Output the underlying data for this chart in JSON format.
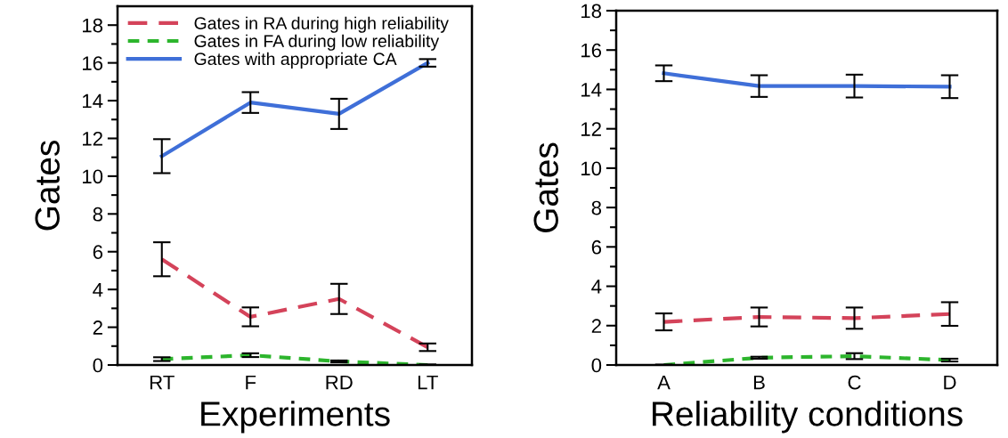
{
  "chart_data": [
    {
      "type": "line",
      "xlabel": "Experiments",
      "ylabel": "Gates",
      "categories": [
        "RT",
        "F",
        "RD",
        "LT"
      ],
      "ylim": [
        0,
        19
      ],
      "yticks": [
        0,
        {
          "value": 1,
          "label": null
        },
        2,
        {
          "value": 3,
          "label": null
        },
        4,
        {
          "value": 5,
          "label": null
        },
        6,
        {
          "value": 7,
          "label": null
        },
        8,
        {
          "value": 9,
          "label": null
        },
        10,
        {
          "value": 11,
          "label": null
        },
        12,
        {
          "value": 13,
          "label": null
        },
        14,
        {
          "value": 15,
          "label": null
        },
        16,
        {
          "value": 17,
          "label": null
        },
        18
      ],
      "grid": false,
      "legend": "top left",
      "series": [
        {
          "name": "Gates in RA during high reliability",
          "color": "#d4435a",
          "line_style": "dashed",
          "values": [
            5.6,
            2.55,
            3.5,
            0.94
          ],
          "errors": [
            0.9,
            0.5,
            0.8,
            0.2
          ]
        },
        {
          "name": "Gates in FA during low reliability",
          "color": "#2db52d",
          "line_style": "dotted",
          "values": [
            0.31,
            0.52,
            0.19,
            0.0
          ],
          "errors": [
            0.1,
            0.1,
            0.05,
            0.03
          ]
        },
        {
          "name": "Gates with appropriate CA",
          "color": "#3f6fd8",
          "line_style": "solid",
          "values": [
            11.06,
            13.9,
            13.3,
            16.0
          ],
          "errors": [
            0.9,
            0.55,
            0.8,
            0.2
          ]
        }
      ]
    },
    {
      "type": "line",
      "xlabel": "Reliability conditions",
      "ylabel": "Gates",
      "categories": [
        "A",
        "B",
        "C",
        "D"
      ],
      "ylim": [
        0,
        18
      ],
      "yticks": [
        0,
        {
          "value": 1,
          "label": null
        },
        2,
        {
          "value": 3,
          "label": null
        },
        4,
        {
          "value": 5,
          "label": null
        },
        6,
        {
          "value": 7,
          "label": null
        },
        8,
        {
          "value": 9,
          "label": null
        },
        10,
        {
          "value": 11,
          "label": null
        },
        12,
        {
          "value": 13,
          "label": null
        },
        14,
        {
          "value": 15,
          "label": null
        },
        16,
        {
          "value": 17,
          "label": null
        },
        18
      ],
      "grid": false,
      "series": [
        {
          "color": "#d4435a",
          "line_style": "dashed",
          "values": [
            2.19,
            2.44,
            2.38,
            2.59
          ],
          "errors": [
            0.43,
            0.48,
            0.54,
            0.6
          ]
        },
        {
          "color": "#2db52d",
          "line_style": "dotted",
          "values": [
            0.0,
            0.37,
            0.45,
            0.25
          ],
          "errors": [
            0.02,
            0.05,
            0.15,
            0.07
          ]
        },
        {
          "color": "#3f6fd8",
          "line_style": "solid",
          "values": [
            14.82,
            14.17,
            14.17,
            14.14
          ],
          "errors": [
            0.4,
            0.55,
            0.58,
            0.58
          ]
        }
      ]
    }
  ]
}
